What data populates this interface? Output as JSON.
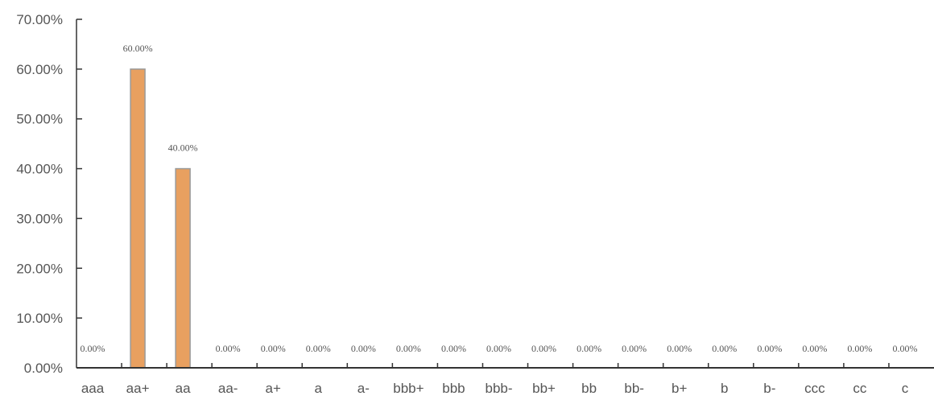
{
  "chart_data": {
    "type": "bar",
    "title": "",
    "xlabel": "",
    "ylabel": "",
    "categories": [
      "aaa",
      "aa+",
      "aa",
      "aa-",
      "a+",
      "a",
      "a-",
      "bbb+",
      "bbb",
      "bbb-",
      "bb+",
      "bb",
      "bb-",
      "b+",
      "b",
      "b-",
      "ccc",
      "cc",
      "c"
    ],
    "values": [
      0,
      60,
      40,
      0,
      0,
      0,
      0,
      0,
      0,
      0,
      0,
      0,
      0,
      0,
      0,
      0,
      0,
      0,
      0
    ],
    "data_labels": [
      "0.00%",
      "60.00%",
      "40.00%",
      "0.00%",
      "0.00%",
      "0.00%",
      "0.00%",
      "0.00%",
      "0.00%",
      "0.00%",
      "0.00%",
      "0.00%",
      "0.00%",
      "0.00%",
      "0.00%",
      "0.00%",
      "0.00%",
      "0.00%",
      "0.00%"
    ],
    "y_ticks": [
      "0.00%",
      "10.00%",
      "20.00%",
      "30.00%",
      "40.00%",
      "50.00%",
      "60.00%",
      "70.00%"
    ],
    "ylim": [
      0,
      70
    ],
    "grid": false,
    "legend": "none",
    "bar_color": "#e8a060",
    "bar_edge_color": "#9a9a9a",
    "axis_color": "#333333"
  }
}
